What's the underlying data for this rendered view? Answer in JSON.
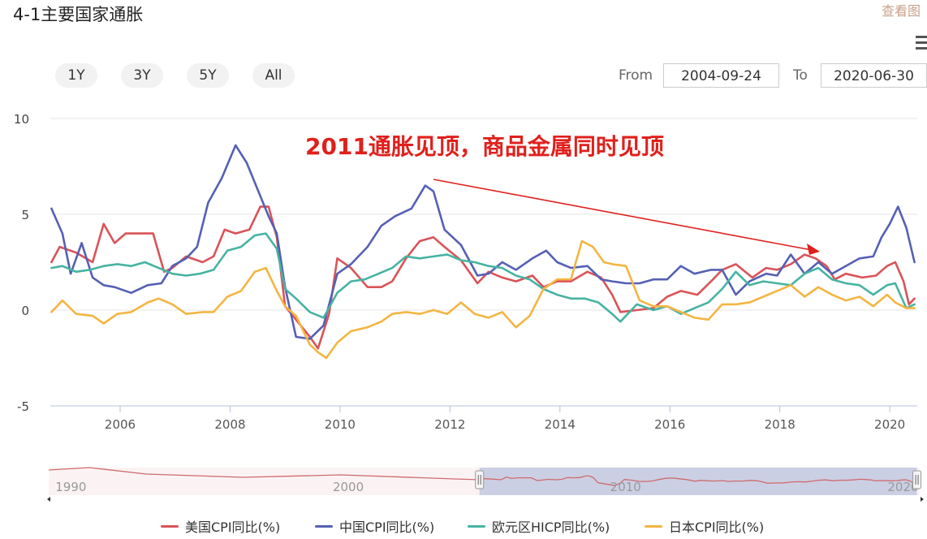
{
  "header": {
    "title": "4-1主要国家通胀",
    "view_link": "查看图",
    "menu_icon": "hamburger-icon"
  },
  "range_selector": {
    "buttons": [
      "1Y",
      "3Y",
      "5Y",
      "All"
    ],
    "from_label": "From",
    "from_value": "2004-09-24",
    "to_label": "To",
    "to_value": "2020-06-30"
  },
  "chart_data": {
    "type": "line",
    "annotation": "2011通胀见顶，商品金属同时见顶",
    "y_ticks": [
      "10",
      "5",
      "0",
      "-5"
    ],
    "ylim": [
      -5,
      10
    ],
    "x_ticks": [
      "2006",
      "2008",
      "2010",
      "2012",
      "2014",
      "2016",
      "2018",
      "2020"
    ],
    "xlim": [
      2004.73,
      2020.5
    ],
    "grid": true,
    "legend_position": "bottom",
    "colors": {
      "us": "#d95357",
      "cn": "#5560b5",
      "ez": "#46b3a2",
      "jp": "#f4b542",
      "arrow": "#e0201c"
    },
    "navigator": {
      "ticks": [
        "1990",
        "2000",
        "2010",
        "2020"
      ]
    },
    "series": [
      {
        "key": "us",
        "name": "美国CPI同比(%)",
        "x": [
          2004.75,
          2004.9,
          2005.2,
          2005.5,
          2005.7,
          2005.9,
          2006.1,
          2006.4,
          2006.6,
          2006.8,
          2006.95,
          2007.2,
          2007.5,
          2007.7,
          2007.9,
          2008.1,
          2008.35,
          2008.55,
          2008.7,
          2008.85,
          2009.0,
          2009.2,
          2009.45,
          2009.6,
          2009.8,
          2009.95,
          2010.2,
          2010.5,
          2010.75,
          2010.95,
          2011.2,
          2011.45,
          2011.7,
          2011.9,
          2012.2,
          2012.5,
          2012.7,
          2012.95,
          2013.2,
          2013.5,
          2013.7,
          2013.95,
          2014.2,
          2014.5,
          2014.75,
          2014.95,
          2015.1,
          2015.4,
          2015.7,
          2015.95,
          2016.2,
          2016.5,
          2016.75,
          2016.95,
          2017.2,
          2017.5,
          2017.75,
          2017.95,
          2018.2,
          2018.45,
          2018.65,
          2018.85,
          2019.0,
          2019.2,
          2019.5,
          2019.75,
          2019.95,
          2020.1,
          2020.25,
          2020.35,
          2020.45
        ],
        "values": [
          2.5,
          3.3,
          3.0,
          2.5,
          4.5,
          3.5,
          4.0,
          4.0,
          4.0,
          2.0,
          2.2,
          2.8,
          2.5,
          2.8,
          4.2,
          4.0,
          4.2,
          5.4,
          5.4,
          3.8,
          0.2,
          -0.5,
          -1.4,
          -2.0,
          -0.2,
          2.7,
          2.2,
          1.2,
          1.2,
          1.5,
          2.7,
          3.6,
          3.8,
          3.3,
          2.6,
          1.4,
          2.0,
          1.7,
          1.5,
          1.8,
          1.2,
          1.5,
          1.5,
          2.0,
          1.7,
          0.8,
          -0.1,
          0.0,
          0.1,
          0.7,
          1.0,
          0.8,
          1.5,
          2.1,
          2.4,
          1.7,
          2.2,
          2.1,
          2.4,
          2.9,
          2.7,
          2.3,
          1.6,
          1.9,
          1.7,
          1.8,
          2.3,
          2.5,
          1.5,
          0.3,
          0.6
        ]
      },
      {
        "key": "cn",
        "name": "中国CPI同比(%)",
        "x": [
          2004.75,
          2004.95,
          2005.1,
          2005.3,
          2005.5,
          2005.7,
          2005.9,
          2006.2,
          2006.5,
          2006.75,
          2006.95,
          2007.2,
          2007.4,
          2007.6,
          2007.85,
          2008.1,
          2008.3,
          2008.5,
          2008.7,
          2008.85,
          2009.0,
          2009.2,
          2009.45,
          2009.7,
          2009.95,
          2010.2,
          2010.5,
          2010.75,
          2011.0,
          2011.3,
          2011.55,
          2011.7,
          2011.9,
          2012.2,
          2012.5,
          2012.7,
          2012.95,
          2013.2,
          2013.5,
          2013.75,
          2013.95,
          2014.2,
          2014.5,
          2014.75,
          2014.95,
          2015.2,
          2015.45,
          2015.7,
          2015.95,
          2016.2,
          2016.45,
          2016.75,
          2016.95,
          2017.2,
          2017.45,
          2017.75,
          2017.95,
          2018.2,
          2018.45,
          2018.7,
          2018.95,
          2019.2,
          2019.45,
          2019.7,
          2019.85,
          2020.0,
          2020.15,
          2020.3,
          2020.45
        ],
        "values": [
          5.3,
          4.0,
          1.9,
          3.5,
          1.7,
          1.3,
          1.2,
          0.9,
          1.3,
          1.4,
          2.3,
          2.7,
          3.3,
          5.6,
          6.9,
          8.6,
          7.7,
          6.3,
          4.9,
          4.0,
          1.2,
          -1.4,
          -1.5,
          -0.8,
          1.9,
          2.4,
          3.3,
          4.4,
          4.9,
          5.3,
          6.5,
          6.2,
          4.2,
          3.4,
          1.8,
          1.9,
          2.5,
          2.1,
          2.7,
          3.1,
          2.5,
          2.2,
          2.3,
          1.6,
          1.5,
          1.4,
          1.4,
          1.6,
          1.6,
          2.3,
          1.9,
          2.1,
          2.1,
          0.8,
          1.5,
          1.9,
          1.8,
          2.9,
          1.9,
          2.5,
          1.9,
          2.3,
          2.7,
          2.8,
          3.8,
          4.5,
          5.4,
          4.3,
          2.5
        ]
      },
      {
        "key": "ez",
        "name": "欧元区HICP同比(%)",
        "x": [
          2004.75,
          2004.95,
          2005.2,
          2005.45,
          2005.7,
          2005.95,
          2006.2,
          2006.45,
          2006.7,
          2006.95,
          2007.2,
          2007.45,
          2007.7,
          2007.95,
          2008.2,
          2008.45,
          2008.65,
          2008.85,
          2009.0,
          2009.2,
          2009.45,
          2009.7,
          2009.95,
          2010.2,
          2010.45,
          2010.7,
          2010.95,
          2011.2,
          2011.45,
          2011.7,
          2011.95,
          2012.2,
          2012.45,
          2012.7,
          2012.95,
          2013.2,
          2013.45,
          2013.7,
          2013.95,
          2014.2,
          2014.45,
          2014.7,
          2014.95,
          2015.1,
          2015.4,
          2015.7,
          2015.95,
          2016.2,
          2016.45,
          2016.7,
          2016.95,
          2017.2,
          2017.45,
          2017.7,
          2017.95,
          2018.2,
          2018.45,
          2018.7,
          2018.95,
          2019.2,
          2019.45,
          2019.7,
          2019.95,
          2020.1,
          2020.3,
          2020.45
        ],
        "values": [
          2.2,
          2.3,
          2.0,
          2.1,
          2.3,
          2.4,
          2.3,
          2.5,
          2.2,
          1.9,
          1.8,
          1.9,
          2.1,
          3.1,
          3.3,
          3.9,
          4.0,
          3.2,
          1.1,
          0.6,
          -0.1,
          -0.4,
          0.9,
          1.5,
          1.6,
          1.9,
          2.2,
          2.8,
          2.7,
          2.8,
          2.9,
          2.6,
          2.5,
          2.3,
          2.2,
          1.8,
          1.6,
          1.1,
          0.8,
          0.6,
          0.6,
          0.4,
          -0.2,
          -0.6,
          0.3,
          0.0,
          0.2,
          -0.2,
          0.1,
          0.4,
          1.1,
          2.0,
          1.3,
          1.5,
          1.4,
          1.3,
          1.9,
          2.2,
          1.6,
          1.4,
          1.3,
          0.8,
          1.3,
          1.4,
          0.1,
          0.3
        ]
      },
      {
        "key": "jp",
        "name": "日本CPI同比(%)",
        "x": [
          2004.75,
          2004.95,
          2005.2,
          2005.5,
          2005.7,
          2005.95,
          2006.2,
          2006.5,
          2006.7,
          2006.95,
          2007.2,
          2007.5,
          2007.7,
          2007.95,
          2008.2,
          2008.45,
          2008.65,
          2008.85,
          2009.0,
          2009.2,
          2009.45,
          2009.6,
          2009.75,
          2009.95,
          2010.2,
          2010.5,
          2010.75,
          2010.95,
          2011.2,
          2011.45,
          2011.7,
          2011.95,
          2012.2,
          2012.45,
          2012.7,
          2012.95,
          2013.2,
          2013.45,
          2013.7,
          2013.95,
          2014.2,
          2014.4,
          2014.6,
          2014.8,
          2014.95,
          2015.2,
          2015.45,
          2015.7,
          2015.95,
          2016.2,
          2016.45,
          2016.7,
          2016.95,
          2017.2,
          2017.45,
          2017.7,
          2017.95,
          2018.2,
          2018.45,
          2018.7,
          2018.95,
          2019.2,
          2019.45,
          2019.7,
          2019.95,
          2020.1,
          2020.3,
          2020.45
        ],
        "values": [
          -0.1,
          0.5,
          -0.2,
          -0.3,
          -0.7,
          -0.2,
          -0.1,
          0.4,
          0.6,
          0.3,
          -0.2,
          -0.1,
          -0.1,
          0.7,
          1.0,
          2.0,
          2.2,
          1.0,
          0.2,
          -0.3,
          -1.8,
          -2.2,
          -2.5,
          -1.7,
          -1.1,
          -0.9,
          -0.6,
          -0.2,
          -0.1,
          -0.2,
          0.0,
          -0.2,
          0.4,
          -0.2,
          -0.4,
          -0.1,
          -0.9,
          -0.3,
          1.1,
          1.6,
          1.6,
          3.6,
          3.3,
          2.5,
          2.4,
          2.3,
          0.5,
          0.2,
          0.2,
          -0.1,
          -0.4,
          -0.5,
          0.3,
          0.3,
          0.4,
          0.7,
          1.0,
          1.3,
          0.7,
          1.2,
          0.8,
          0.5,
          0.7,
          0.2,
          0.8,
          0.4,
          0.1,
          0.1
        ]
      }
    ]
  }
}
